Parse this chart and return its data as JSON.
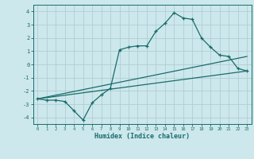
{
  "title": "",
  "xlabel": "Humidex (Indice chaleur)",
  "ylabel": "",
  "background_color": "#cce8ec",
  "grid_color": "#b0cdd2",
  "line_color": "#1a6b6b",
  "xlim": [
    -0.5,
    23.5
  ],
  "ylim": [
    -4.5,
    4.5
  ],
  "yticks": [
    -4,
    -3,
    -2,
    -1,
    0,
    1,
    2,
    3,
    4
  ],
  "xticks": [
    0,
    1,
    2,
    3,
    4,
    5,
    6,
    7,
    8,
    9,
    10,
    11,
    12,
    13,
    14,
    15,
    16,
    17,
    18,
    19,
    20,
    21,
    22,
    23
  ],
  "line1_x": [
    0,
    1,
    2,
    3,
    4,
    5,
    6,
    7,
    8,
    9,
    10,
    11,
    12,
    13,
    14,
    15,
    16,
    17,
    18,
    19,
    20,
    21,
    22,
    23
  ],
  "line1_y": [
    -2.6,
    -2.7,
    -2.7,
    -2.8,
    -3.5,
    -4.2,
    -2.9,
    -2.3,
    -1.8,
    1.1,
    1.3,
    1.4,
    1.4,
    2.5,
    3.1,
    3.9,
    3.5,
    3.4,
    2.0,
    1.3,
    0.7,
    0.6,
    -0.3,
    -0.5
  ],
  "line2_x": [
    0,
    23
  ],
  "line2_y": [
    -2.6,
    -0.5
  ],
  "line3_x": [
    0,
    23
  ],
  "line3_y": [
    -2.6,
    0.6
  ],
  "marker": "+"
}
